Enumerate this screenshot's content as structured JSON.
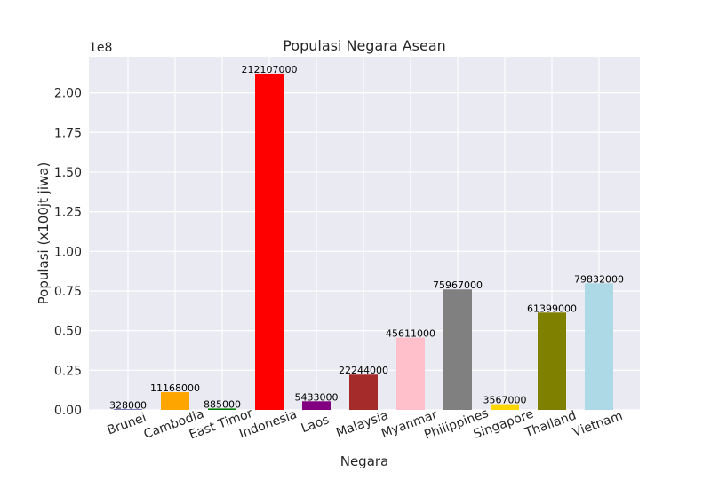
{
  "chart_data": {
    "type": "bar",
    "title": "Populasi Negara Asean",
    "xlabel": "Negara",
    "ylabel": "Populasi (x100jt jiwa)",
    "y_exponent_label": "1e8",
    "categories": [
      "Brunei",
      "Cambodia",
      "East Timor",
      "Indonesia",
      "Laos",
      "Malaysia",
      "Myanmar",
      "Philippines",
      "Singapore",
      "Thailand",
      "Vietnam"
    ],
    "values": [
      328000,
      11168000,
      885000,
      212107000,
      5433000,
      22244000,
      45611000,
      75967000,
      3567000,
      61399000,
      79832000
    ],
    "value_labels": [
      "328000",
      "11168000",
      "885000",
      "212107000",
      "5433000",
      "22244000",
      "45611000",
      "75967000",
      "3567000",
      "61399000",
      "79832000"
    ],
    "colors": [
      "#1f2a8a",
      "#ffa500",
      "#008000",
      "#ff0000",
      "#800080",
      "#a52a2a",
      "#ffc0cb",
      "#808080",
      "#ffd700",
      "#808000",
      "#add8e6"
    ],
    "yticks": [
      0,
      25000000,
      50000000,
      75000000,
      100000000,
      125000000,
      150000000,
      175000000,
      200000000
    ],
    "ytick_labels": [
      "0.00",
      "0.25",
      "0.50",
      "0.75",
      "1.00",
      "1.25",
      "1.50",
      "1.75",
      "2.00"
    ],
    "ylim": [
      0,
      222712350
    ],
    "grid": true,
    "style": "seaborn"
  }
}
